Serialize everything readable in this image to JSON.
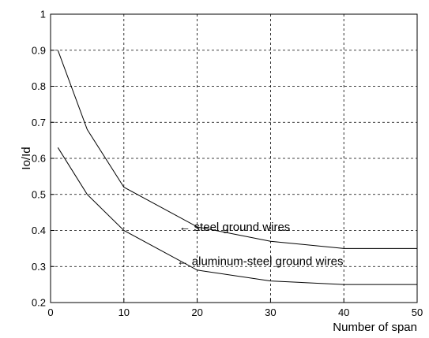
{
  "chart_data": {
    "type": "line",
    "title": "",
    "xlabel": "Number of span",
    "ylabel": "Io/Id",
    "xlim": [
      0,
      50
    ],
    "ylim": [
      0.2,
      1.0
    ],
    "grid": true,
    "x_ticks": [
      0,
      10,
      20,
      30,
      40,
      50
    ],
    "y_ticks": [
      0.2,
      0.3,
      0.4,
      0.5,
      0.6,
      0.7,
      0.8,
      0.9,
      1.0
    ],
    "x_tick_labels": [
      "0",
      "10",
      "20",
      "30",
      "40",
      "50"
    ],
    "y_tick_labels": [
      "0.2",
      "0.3",
      "0.4",
      "0.5",
      "0.6",
      "0.7",
      "0.8",
      "0.9",
      "1"
    ],
    "series": [
      {
        "x": [
          1,
          5,
          10,
          20,
          30,
          40,
          50
        ],
        "y": [
          0.9,
          0.68,
          0.52,
          0.41,
          0.37,
          0.35,
          0.35
        ],
        "color": "#000000"
      },
      {
        "x": [
          1,
          5,
          10,
          20,
          30,
          40,
          50
        ],
        "y": [
          0.63,
          0.5,
          0.4,
          0.29,
          0.26,
          0.25,
          0.25
        ],
        "color": "#000000"
      }
    ],
    "annotations": [
      {
        "text": "steel ground wires",
        "arrow": "←",
        "x": 17.5,
        "y": 0.41
      },
      {
        "text": "aluminum-steel ground wires",
        "arrow": "←",
        "x": 17.2,
        "y": 0.315
      }
    ]
  }
}
